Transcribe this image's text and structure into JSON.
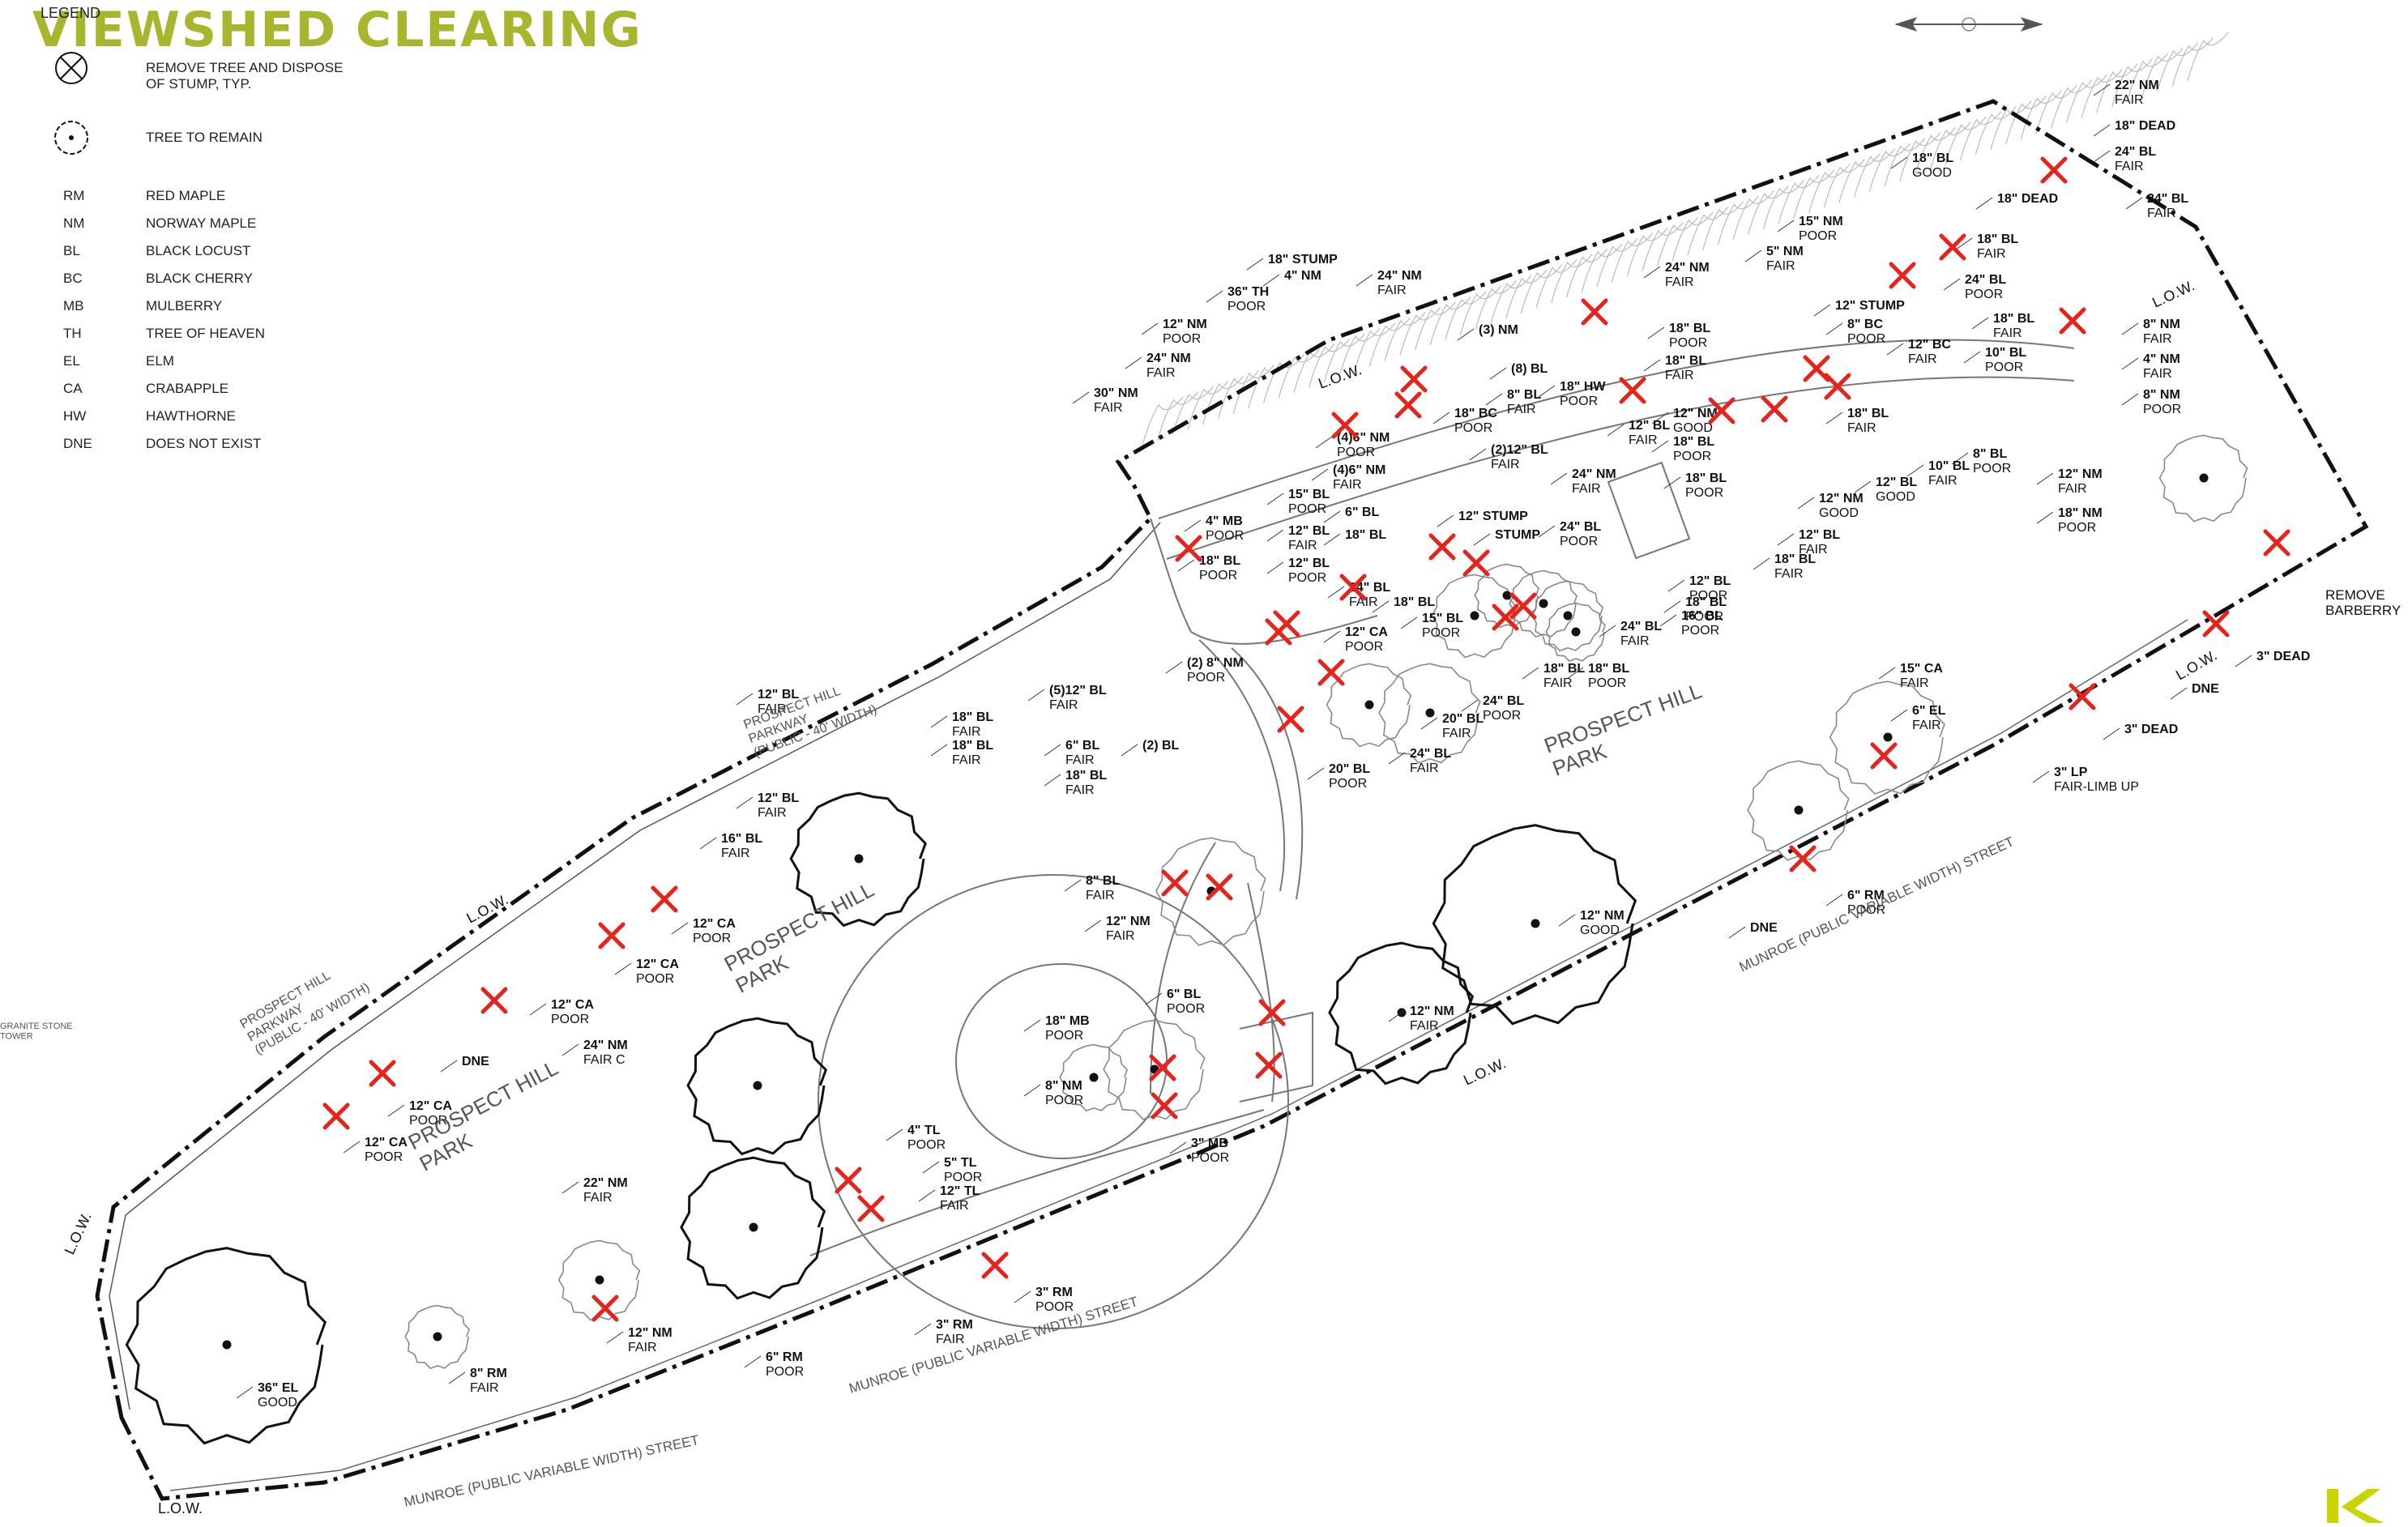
{
  "title": "VIEWSHED CLEARING",
  "legend": {
    "heading": "LEGEND",
    "remove_label": "REMOVE TREE AND DISPOSE\nOF STUMP, TYP.",
    "remain_label": "TREE TO REMAIN",
    "species": [
      {
        "abbr": "RM",
        "name": "RED MAPLE"
      },
      {
        "abbr": "NM",
        "name": "NORWAY MAPLE"
      },
      {
        "abbr": "BL",
        "name": "BLACK LOCUST"
      },
      {
        "abbr": "BC",
        "name": "BLACK CHERRY"
      },
      {
        "abbr": "MB",
        "name": "MULBERRY"
      },
      {
        "abbr": "TH",
        "name": "TREE OF HEAVEN"
      },
      {
        "abbr": "EL",
        "name": "ELM"
      },
      {
        "abbr": "CA",
        "name": "CRABAPPLE"
      },
      {
        "abbr": "HW",
        "name": "HAWTHORNE"
      },
      {
        "abbr": "DNE",
        "name": "DOES NOT EXIST"
      }
    ]
  },
  "colors": {
    "accent": "#a7b62c",
    "remove": "#e8231c",
    "ink": "#111111",
    "brand": "#c9d400"
  },
  "map_labels": {
    "park_1": "PROSPECT HILL\nPARK",
    "park_2": "PROSPECT HILL\nPARK",
    "park_3": "PROSPECT HILL\nPARK",
    "parkway_1": "PROSPECT HILL\nPARKWAY\n(PUBLIC - 40' WIDTH)",
    "parkway_2": "PROSPECT HILL\nPARKWAY\n(PUBLIC - 40' WIDTH)",
    "street_1": "MUNROE  (PUBLIC  VARIABLE WIDTH)  STREET",
    "street_2": "MUNROE  (PUBLIC  VARIABLE WIDTH)  STREET",
    "street_3": "MUNROE  (PUBLIC  VARIABLE WIDTH)  STREET",
    "low": "L.O.W.",
    "remove_barberry": "REMOVE\nBARBERRY",
    "stump": "STUMP",
    "tower": "GRANITE STONE\nTOWER"
  },
  "trees": [
    {
      "label": "22\" NM\nFAIR"
    },
    {
      "label": "18\" DEAD"
    },
    {
      "label": "24\" BL\nFAIR"
    },
    {
      "label": "24\" BL\nFAIR"
    },
    {
      "label": "18\" BL\nGOOD"
    },
    {
      "label": "18\" DEAD"
    },
    {
      "label": "15\" NM\nPOOR"
    },
    {
      "label": "5\" NM\nFAIR"
    },
    {
      "label": "18\" BL\nFAIR"
    },
    {
      "label": "24\" BL\nPOOR"
    },
    {
      "label": "18\" BL\nFAIR"
    },
    {
      "label": "8\" NM\nFAIR"
    },
    {
      "label": "4\" NM\nFAIR"
    },
    {
      "label": "8\" NM\nPOOR"
    },
    {
      "label": "24\" NM\nFAIR"
    },
    {
      "label": "12\" STUMP"
    },
    {
      "label": "8\" BC\nPOOR"
    },
    {
      "label": "12\" BC\nFAIR"
    },
    {
      "label": "10\" BL\nPOOR"
    },
    {
      "label": "18\" BL\nPOOR"
    },
    {
      "label": "18\" BL\nFAIR"
    },
    {
      "label": "12\" NM\nGOOD"
    },
    {
      "label": "18\" BL\nFAIR"
    },
    {
      "label": "8\" BL\nPOOR"
    },
    {
      "label": "12\" NM\nFAIR"
    },
    {
      "label": "18\" NM\nPOOR"
    },
    {
      "label": "10\" BL\nFAIR"
    },
    {
      "label": "12\" BL\nGOOD"
    },
    {
      "label": "12\" NM\nGOOD"
    },
    {
      "label": "12\" BL\nFAIR"
    },
    {
      "label": "18\" BL\nFAIR"
    },
    {
      "label": "18\" BL\nPOOR"
    },
    {
      "label": "18\" BL\nPOOR"
    },
    {
      "label": "12\" BL\nFAIR"
    },
    {
      "label": "18\" STUMP"
    },
    {
      "label": "4\" NM"
    },
    {
      "label": "36\" TH\nPOOR"
    },
    {
      "label": "24\" NM\nFAIR"
    },
    {
      "label": "12\" NM\nPOOR"
    },
    {
      "label": "24\" NM\nFAIR"
    },
    {
      "label": "30\" NM\nFAIR"
    },
    {
      "label": "(3) NM"
    },
    {
      "label": "(8) BL"
    },
    {
      "label": "8\" BL\nFAIR"
    },
    {
      "label": "18\" HW\nPOOR"
    },
    {
      "label": "18\" BC\nPOOR"
    },
    {
      "label": "(2)12\" BL\nFAIR"
    },
    {
      "label": "(4)6\" NM\nPOOR"
    },
    {
      "label": "(4)6\" NM\nFAIR"
    },
    {
      "label": "24\" NM\nFAIR"
    },
    {
      "label": "15\" BL\nPOOR"
    },
    {
      "label": "6\" BL"
    },
    {
      "label": "18\" BL"
    },
    {
      "label": "12\" STUMP"
    },
    {
      "label": "STUMP"
    },
    {
      "label": "24\" BL\nPOOR"
    },
    {
      "label": "4\" MB\nPOOR"
    },
    {
      "label": "18\" BL\nPOOR"
    },
    {
      "label": "12\" BL\nFAIR"
    },
    {
      "label": "12\" BL\nPOOR"
    },
    {
      "label": "24\" BL\nFAIR"
    },
    {
      "label": "18\" BL"
    },
    {
      "label": "15\" BL\nPOOR"
    },
    {
      "label": "12\" BL\nPOOR"
    },
    {
      "label": "18\" BL\nPOOR"
    },
    {
      "label": "24\" BL\nFAIR"
    },
    {
      "label": "16\" BL\nPOOR"
    },
    {
      "label": "18\" BL\nFAIR"
    },
    {
      "label": "18\" BL\nPOOR"
    },
    {
      "label": "24\" BL\nPOOR"
    },
    {
      "label": "12\" CA\nPOOR"
    },
    {
      "label": "(2) 8\" NM\nPOOR"
    },
    {
      "label": "20\" BL\nPOOR"
    },
    {
      "label": "20\" BL\nFAIR"
    },
    {
      "label": "24\" BL\nFAIR"
    },
    {
      "label": "15\" CA\nFAIR"
    },
    {
      "label": "6\" EL\nFAIR"
    },
    {
      "label": "3\" DEAD"
    },
    {
      "label": "3\" DEAD"
    },
    {
      "label": "DNE"
    },
    {
      "label": "3\" LP\nFAIR-LIMB UP"
    },
    {
      "label": "6\" RM\nPOOR"
    },
    {
      "label": "DNE"
    },
    {
      "label": "12\" BL\nFAIR"
    },
    {
      "label": "18\" BL\nFAIR"
    },
    {
      "label": "(5)12\" BL\nFAIR"
    },
    {
      "label": "18\" BL\nFAIR"
    },
    {
      "label": "6\" BL\nFAIR"
    },
    {
      "label": "18\" BL\nFAIR"
    },
    {
      "label": "(2) BL"
    },
    {
      "label": "12\" BL\nFAIR"
    },
    {
      "label": "16\" BL\nFAIR"
    },
    {
      "label": "12\" CA\nPOOR"
    },
    {
      "label": "12\" CA\nPOOR"
    },
    {
      "label": "8\" BL\nFAIR"
    },
    {
      "label": "12\" NM\nFAIR"
    },
    {
      "label": "12\" NM\nGOOD"
    },
    {
      "label": "12\" NM\nFAIR"
    },
    {
      "label": "12\" CA\nPOOR"
    },
    {
      "label": "DNE"
    },
    {
      "label": "12\" CA\nPOOR"
    },
    {
      "label": "12\" CA\nPOOR"
    },
    {
      "label": "24\" NM\nFAIR C"
    },
    {
      "label": "6\" BL\nPOOR"
    },
    {
      "label": "18\" MB\nPOOR"
    },
    {
      "label": "8\" NM\nPOOR"
    },
    {
      "label": "3\" MB\nPOOR"
    },
    {
      "label": "22\" NM\nFAIR"
    },
    {
      "label": "4\" TL\nPOOR"
    },
    {
      "label": "5\" TL\nPOOR"
    },
    {
      "label": "12\" TL\nFAIR"
    },
    {
      "label": "3\" RM\nPOOR"
    },
    {
      "label": "3\" RM\nFAIR"
    },
    {
      "label": "6\" RM\nPOOR"
    },
    {
      "label": "12\" NM\nFAIR"
    },
    {
      "label": "8\" RM\nFAIR"
    },
    {
      "label": "36\" EL\nGOOD"
    }
  ],
  "remove_marks_count": 47
}
